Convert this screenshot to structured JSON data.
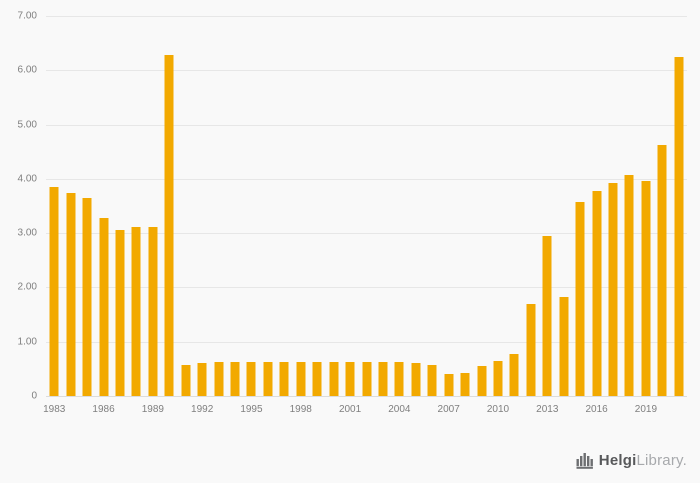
{
  "page": {
    "background": "#f9f9f9"
  },
  "chart_data": {
    "type": "bar",
    "title": "",
    "xlabel": "",
    "ylabel": "",
    "x": [
      1983,
      1984,
      1985,
      1986,
      1987,
      1988,
      1989,
      1990,
      1991,
      1992,
      1993,
      1994,
      1995,
      1996,
      1997,
      1998,
      1999,
      2000,
      2001,
      2002,
      2003,
      2004,
      2005,
      2006,
      2007,
      2008,
      2009,
      2010,
      2011,
      2012,
      2013,
      2014,
      2015,
      2016,
      2017,
      2018,
      2019,
      2020,
      2021
    ],
    "values": [
      3.85,
      3.74,
      3.64,
      3.28,
      3.05,
      3.12,
      3.12,
      6.28,
      0.58,
      0.6,
      0.62,
      0.62,
      0.63,
      0.62,
      0.62,
      0.62,
      0.63,
      0.62,
      0.62,
      0.63,
      0.62,
      0.62,
      0.6,
      0.58,
      0.4,
      0.43,
      0.55,
      0.65,
      0.78,
      1.7,
      2.95,
      1.83,
      3.57,
      3.78,
      3.93,
      4.07,
      3.97,
      4.63,
      6.25
    ],
    "ylim": [
      0,
      7
    ],
    "y_ticks": [
      "7.00",
      "6.00",
      "5.00",
      "4.00",
      "3.00",
      "2.00",
      "1.00",
      "0"
    ],
    "x_tick_labels": [
      "1983",
      "1986",
      "1989",
      "1992",
      "1995",
      "1998",
      "2001",
      "2004",
      "2007",
      "2010",
      "2013",
      "2016",
      "2019"
    ],
    "bar_color": "#F2A900",
    "gridline_color": "#e7e7e7",
    "grid": true,
    "legend": "none"
  },
  "footer": {
    "brand_primary": "Helgi",
    "brand_secondary": "Library",
    "brand_suffix": "."
  }
}
